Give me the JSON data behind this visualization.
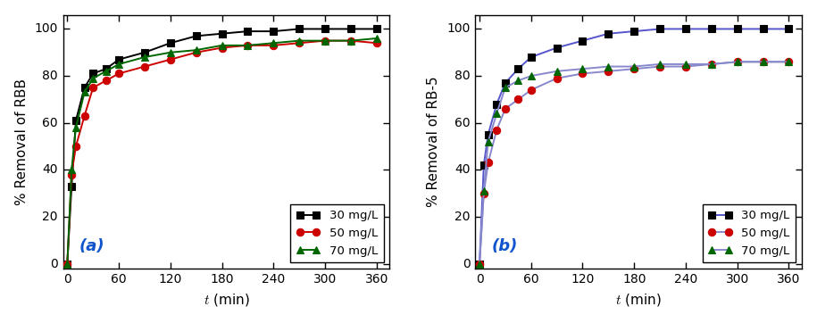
{
  "panel_a": {
    "ylabel": "% Removal of RBB",
    "xlabel": "t (min)",
    "label": "(a)",
    "series": [
      {
        "label": "30 mg/L",
        "color": "#000000",
        "marker": "s",
        "markersize": 6,
        "x": [
          0,
          5,
          10,
          20,
          30,
          45,
          60,
          90,
          120,
          150,
          180,
          210,
          240,
          270,
          300,
          330,
          360
        ],
        "y": [
          0,
          33,
          61,
          75,
          81,
          83,
          87,
          90,
          94,
          97,
          98,
          99,
          99,
          100,
          100,
          100,
          100
        ]
      },
      {
        "label": "50 mg/L",
        "color": "#cc0000",
        "marker": "o",
        "markersize": 6,
        "x": [
          0,
          5,
          10,
          20,
          30,
          45,
          60,
          90,
          120,
          150,
          180,
          210,
          240,
          270,
          300,
          330,
          360
        ],
        "y": [
          0,
          38,
          50,
          63,
          75,
          78,
          81,
          84,
          87,
          90,
          92,
          93,
          93,
          94,
          95,
          95,
          94
        ]
      },
      {
        "label": "70 mg/L",
        "color": "#006600",
        "marker": "^",
        "markersize": 6,
        "x": [
          0,
          5,
          10,
          20,
          30,
          45,
          60,
          90,
          120,
          150,
          180,
          210,
          240,
          270,
          300,
          330,
          360
        ],
        "y": [
          0,
          40,
          58,
          73,
          79,
          82,
          85,
          88,
          90,
          91,
          93,
          93,
          94,
          95,
          95,
          95,
          96
        ]
      }
    ],
    "xlim": [
      -5,
      375
    ],
    "ylim": [
      -2,
      106
    ],
    "xticks": [
      0,
      60,
      120,
      180,
      240,
      300,
      360
    ],
    "yticks": [
      0,
      20,
      40,
      60,
      80,
      100
    ]
  },
  "panel_b": {
    "ylabel": "% Removal of RB-5",
    "xlabel": "t (min)",
    "label": "(b)",
    "series": [
      {
        "label": "30 mg/L",
        "color": "#000000",
        "line_color": "#5555cc",
        "marker": "s",
        "markersize": 6,
        "x": [
          0,
          5,
          10,
          20,
          30,
          45,
          60,
          90,
          120,
          150,
          180,
          210,
          240,
          270,
          300,
          330,
          360
        ],
        "y": [
          0,
          42,
          55,
          68,
          77,
          83,
          88,
          92,
          95,
          98,
          99,
          100,
          100,
          100,
          100,
          100,
          100
        ]
      },
      {
        "label": "50 mg/L",
        "color": "#cc0000",
        "line_color": "#8888cc",
        "marker": "o",
        "markersize": 6,
        "x": [
          0,
          5,
          10,
          20,
          30,
          45,
          60,
          90,
          120,
          150,
          180,
          210,
          240,
          270,
          300,
          330,
          360
        ],
        "y": [
          0,
          30,
          43,
          57,
          66,
          70,
          74,
          79,
          81,
          82,
          83,
          84,
          84,
          85,
          86,
          86,
          86
        ]
      },
      {
        "label": "70 mg/L",
        "color": "#006600",
        "line_color": "#8888cc",
        "marker": "^",
        "markersize": 6,
        "x": [
          0,
          5,
          10,
          20,
          30,
          45,
          60,
          90,
          120,
          150,
          180,
          210,
          240,
          270,
          300,
          330,
          360
        ],
        "y": [
          0,
          31,
          52,
          64,
          75,
          78,
          80,
          82,
          83,
          84,
          84,
          85,
          85,
          85,
          86,
          86,
          86
        ]
      }
    ],
    "xlim": [
      -5,
      375
    ],
    "ylim": [
      -2,
      106
    ],
    "xticks": [
      0,
      60,
      120,
      180,
      240,
      300,
      360
    ],
    "yticks": [
      0,
      20,
      40,
      60,
      80,
      100
    ]
  },
  "legend_loc": "lower right",
  "figure_bgcolor": "#ffffff",
  "axes_bgcolor": "#ffffff",
  "line_width": 1.4,
  "label_fontsize": 11,
  "tick_fontsize": 10,
  "legend_fontsize": 9.5,
  "panel_label_fontsize": 13,
  "panel_label_color": "#1155cc"
}
